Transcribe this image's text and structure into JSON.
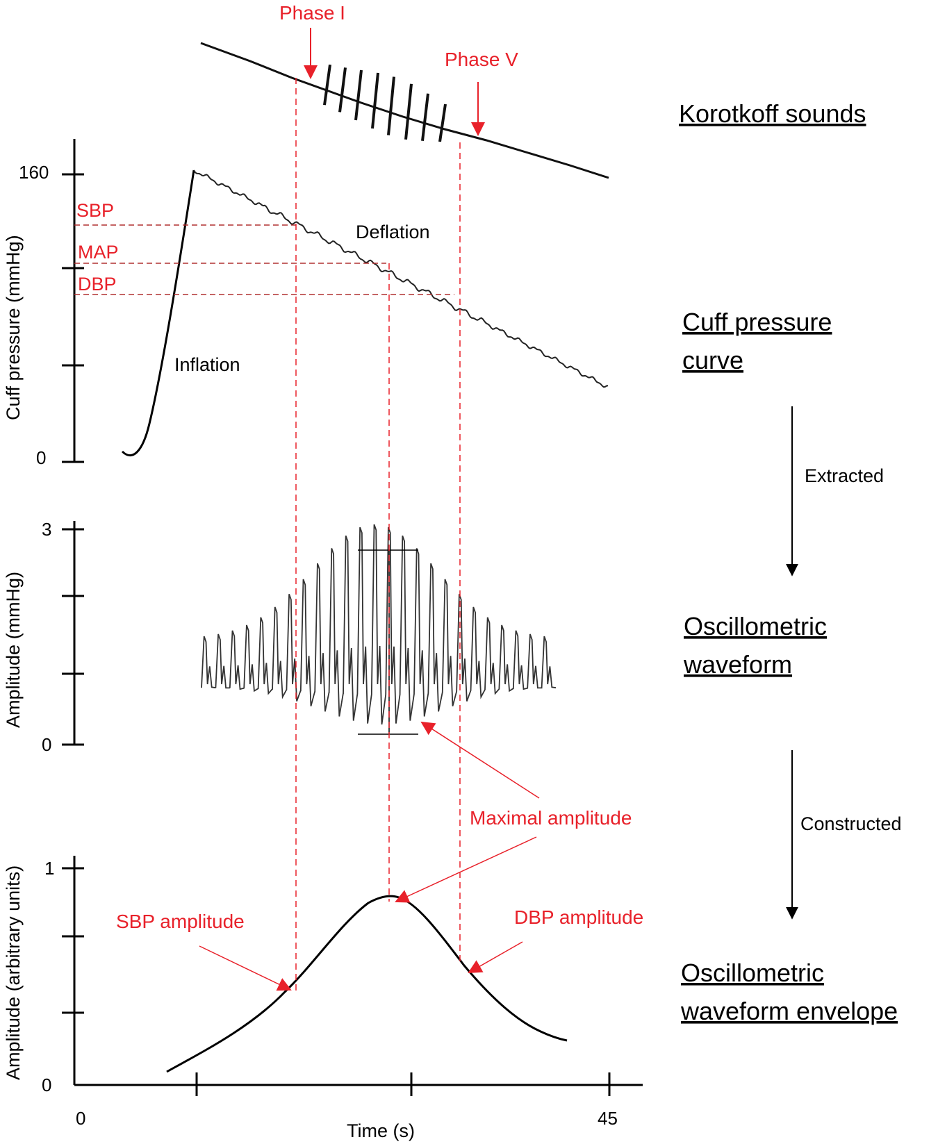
{
  "phase_labels": {
    "phase1": "Phase I",
    "phase5": "Phase V"
  },
  "panels": {
    "korotkoff": "Korotkoff sounds",
    "cuff_line1": "Cuff pressure",
    "cuff_line2": "curve",
    "osc_line1": "Oscillometric",
    "osc_line2": "waveform",
    "env_line1": "Oscillometric",
    "env_line2": "waveform envelope"
  },
  "flow": {
    "extracted": "Extracted",
    "constructed": "Constructed"
  },
  "cuff_axis": {
    "title": "Cuff pressure (mmHg)",
    "tick_top": "160",
    "tick_bottom": "0"
  },
  "cuff_markers": {
    "sbp": "SBP",
    "map": "MAP",
    "dbp": "DBP"
  },
  "curve_labels": {
    "deflation": "Deflation",
    "inflation": "Inflation"
  },
  "osc_axis": {
    "title": "Amplitude (mmHg)",
    "tick_top": "3",
    "tick_bottom": "0"
  },
  "env_axis": {
    "title": "Amplitude (arbitrary units)",
    "tick_top": "1",
    "tick_bottom": "0"
  },
  "annotations": {
    "max_amp": "Maximal amplitude",
    "sbp_amp": "SBP amplitude",
    "dbp_amp": "DBP amplitude"
  },
  "time_axis": {
    "title": "Time (s)",
    "tick_start": "0",
    "tick_end": "45"
  },
  "colors": {
    "red": "#e8212a",
    "dark_red": "#b03030",
    "line": "#000000"
  }
}
